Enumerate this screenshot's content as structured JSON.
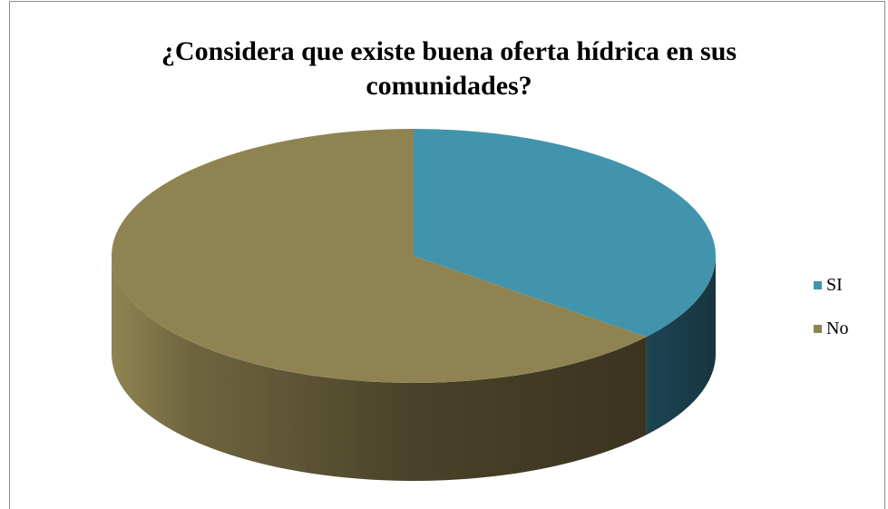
{
  "chart_data": {
    "type": "pie",
    "title_lines": [
      "¿Considera que existe buena oferta hídrica en sus",
      "comunidades?"
    ],
    "categories": [
      "SI",
      "No"
    ],
    "values": [
      36,
      64
    ],
    "colors": [
      "#4194AC",
      "#8F8451"
    ],
    "side_colors": [
      "#1B3C4B",
      "#433C21"
    ],
    "legend_position": "right",
    "three_d": true
  }
}
